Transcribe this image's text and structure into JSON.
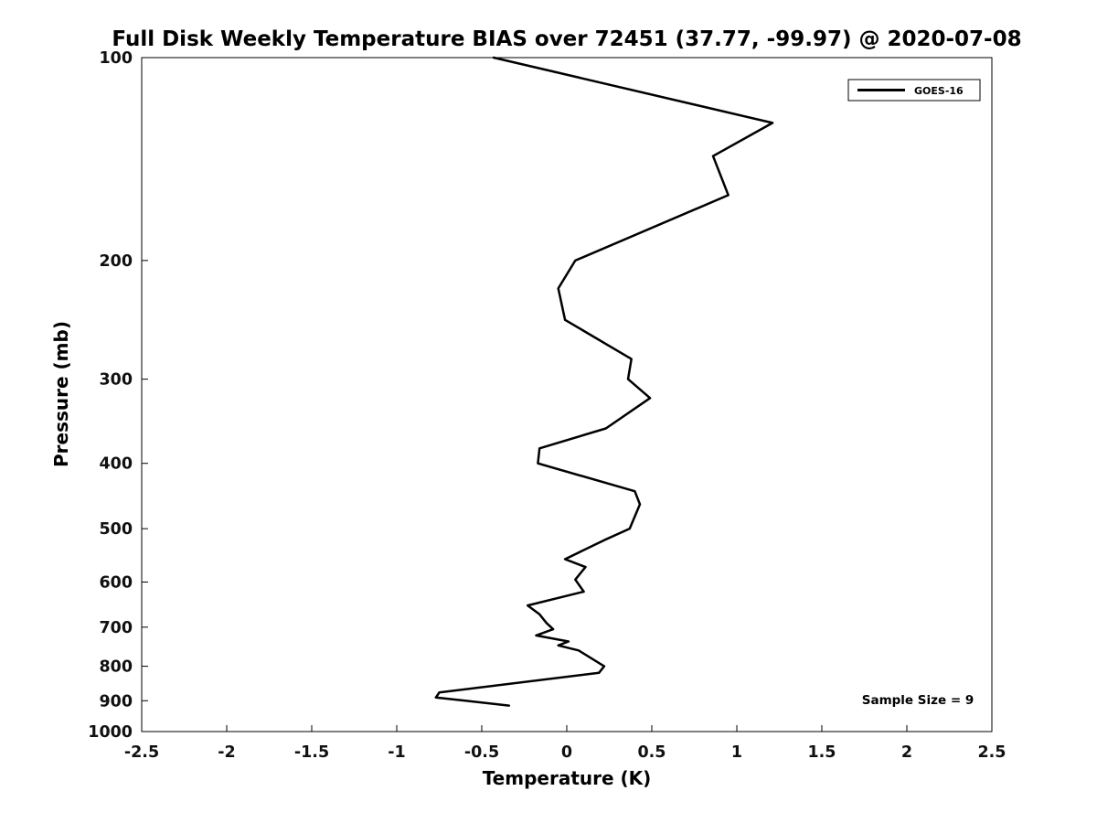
{
  "page": {
    "background": "#ffffff"
  },
  "chart_data": {
    "type": "line",
    "title": "Full Disk Weekly Temperature BIAS over 72451 (37.77, -99.97) @ 2020-07-08",
    "xlabel": "Temperature (K)",
    "ylabel": "Pressure (mb)",
    "xlim": [
      -2.5,
      2.5
    ],
    "ylim": [
      100,
      1000
    ],
    "y_scale": "log",
    "y_axis_direction": "pressure increases downward",
    "grid": false,
    "x_ticks": [
      -2.5,
      -2,
      -1.5,
      -1,
      -0.5,
      0,
      0.5,
      1,
      1.5,
      2,
      2.5
    ],
    "x_tick_labels": [
      "-2.5",
      "-2",
      "-1.5",
      "-1",
      "-0.5",
      "0",
      "0.5",
      "1",
      "1.5",
      "2",
      "2.5"
    ],
    "y_ticks": [
      100,
      200,
      300,
      400,
      500,
      600,
      700,
      800,
      900,
      1000
    ],
    "y_tick_labels": [
      "100",
      "200",
      "300",
      "400",
      "500",
      "600",
      "700",
      "800",
      "900",
      "1000"
    ],
    "line_color": "#000000",
    "line_width": 2.5,
    "legend": {
      "position": "top-right",
      "entries": [
        {
          "label": "GOES-16",
          "color": "#000000"
        }
      ]
    },
    "annotation": {
      "text": "Sample Size = 9"
    },
    "station": {
      "id": "72451",
      "lat": "37.77",
      "lon": "-99.97",
      "date": "2020-07-08"
    },
    "sample_size": 9,
    "series": [
      {
        "name": "GOES-16",
        "x_units": "K",
        "y_units": "mb",
        "points": [
          {
            "pressure_mb": 100,
            "bias_k": -0.43
          },
          {
            "pressure_mb": 125,
            "bias_k": 1.21
          },
          {
            "pressure_mb": 140,
            "bias_k": 0.86
          },
          {
            "pressure_mb": 160,
            "bias_k": 0.95
          },
          {
            "pressure_mb": 200,
            "bias_k": 0.05
          },
          {
            "pressure_mb": 220,
            "bias_k": -0.05
          },
          {
            "pressure_mb": 245,
            "bias_k": -0.01
          },
          {
            "pressure_mb": 280,
            "bias_k": 0.38
          },
          {
            "pressure_mb": 300,
            "bias_k": 0.36
          },
          {
            "pressure_mb": 320,
            "bias_k": 0.49
          },
          {
            "pressure_mb": 355,
            "bias_k": 0.23
          },
          {
            "pressure_mb": 380,
            "bias_k": -0.16
          },
          {
            "pressure_mb": 400,
            "bias_k": -0.17
          },
          {
            "pressure_mb": 440,
            "bias_k": 0.4
          },
          {
            "pressure_mb": 460,
            "bias_k": 0.43
          },
          {
            "pressure_mb": 500,
            "bias_k": 0.37
          },
          {
            "pressure_mb": 520,
            "bias_k": 0.22
          },
          {
            "pressure_mb": 555,
            "bias_k": -0.01
          },
          {
            "pressure_mb": 570,
            "bias_k": 0.11
          },
          {
            "pressure_mb": 595,
            "bias_k": 0.05
          },
          {
            "pressure_mb": 620,
            "bias_k": 0.1
          },
          {
            "pressure_mb": 650,
            "bias_k": -0.23
          },
          {
            "pressure_mb": 670,
            "bias_k": -0.16
          },
          {
            "pressure_mb": 690,
            "bias_k": -0.12
          },
          {
            "pressure_mb": 705,
            "bias_k": -0.08
          },
          {
            "pressure_mb": 720,
            "bias_k": -0.18
          },
          {
            "pressure_mb": 735,
            "bias_k": 0.01
          },
          {
            "pressure_mb": 745,
            "bias_k": -0.05
          },
          {
            "pressure_mb": 758,
            "bias_k": 0.07
          },
          {
            "pressure_mb": 800,
            "bias_k": 0.22
          },
          {
            "pressure_mb": 818,
            "bias_k": 0.19
          },
          {
            "pressure_mb": 875,
            "bias_k": -0.75
          },
          {
            "pressure_mb": 890,
            "bias_k": -0.77
          },
          {
            "pressure_mb": 915,
            "bias_k": -0.34
          }
        ]
      }
    ]
  }
}
